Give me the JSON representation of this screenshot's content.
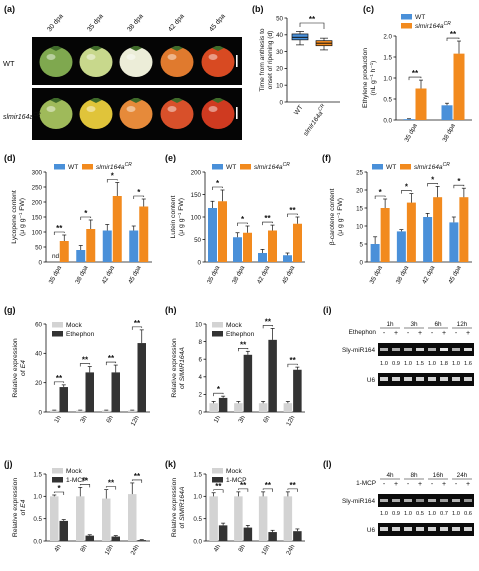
{
  "colors": {
    "wt": "#4a90d9",
    "mut": "#f28a1e",
    "mock": "#d3d3d3",
    "treat": "#333333",
    "gel_bg": "#0b0b0b",
    "gel_band": "#e8e8e8",
    "tomato_bg": "#050505"
  },
  "text": {
    "nd": "nd",
    "sig2": "**",
    "sig1": "*",
    "wt_row_label": "WT",
    "mut_row_label_main": "slmir164a",
    "mut_row_label_sup": "CR",
    "mock": "Mock",
    "ethephon": "Ethephon",
    "mcp": "1-MCP",
    "gel_mir": "Sly-miR164",
    "gel_u6": "U6"
  },
  "chart_data": [
    {
      "panel": "a",
      "type": "image",
      "stages": [
        "30 dpa",
        "35 dpa",
        "38 dpa",
        "42 dpa",
        "45 dpa"
      ],
      "rows": [
        {
          "label": "WT",
          "fruit_colors": [
            "#7fa84f",
            "#c8d88c",
            "#ecedd8",
            "#e07a2e",
            "#d84a22"
          ]
        },
        {
          "label": "slmir164aCR",
          "fruit_colors": [
            "#9fba5a",
            "#e0c43a",
            "#e68a3a",
            "#d8502a",
            "#cf3a20"
          ]
        }
      ]
    },
    {
      "panel": "b",
      "type": "box",
      "categories": [
        "WT",
        "slmir164a"
      ],
      "cat_sup": [
        "",
        "CR"
      ],
      "ylabel": [
        "Time from anthesis to",
        "onset of ripening (d)"
      ],
      "yticks": [
        0,
        10,
        20,
        30,
        40,
        50
      ],
      "ylim": [
        0,
        50
      ],
      "boxes": [
        {
          "min": 34,
          "q1": 37,
          "median": 38.5,
          "q3": 40.5,
          "max": 42
        },
        {
          "min": 31,
          "q1": 33.5,
          "median": 35,
          "q3": 36.5,
          "max": 38
        }
      ],
      "signif": "**"
    },
    {
      "panel": "c",
      "type": "bar",
      "categories": [
        "35 dpa",
        "38 dpa"
      ],
      "ylabel": "Ethylene production",
      "ylabel_unit": "(nL g⁻¹ h⁻¹)",
      "yticks": [
        0,
        0.5,
        1.0,
        1.5,
        2.0
      ],
      "ylim": [
        0,
        2.0
      ],
      "series": [
        {
          "name": "WT",
          "values": [
            0.02,
            0.35
          ],
          "err": [
            0.01,
            0.05
          ]
        },
        {
          "name": "slmir164a",
          "values": [
            0.75,
            1.58
          ],
          "err": [
            0.2,
            0.3
          ]
        }
      ],
      "signif": [
        "**",
        "**"
      ],
      "legend": {
        "entries": [
          "WT",
          "slmir164a"
        ],
        "sup": [
          "",
          "CR"
        ]
      }
    },
    {
      "panel": "d",
      "type": "bar",
      "categories": [
        "35 dpa",
        "38 dpa",
        "42 dpa",
        "45 dpa"
      ],
      "ylabel": "Lycopene content",
      "ylabel_unit": "(μ g g⁻¹ FW)",
      "yticks": [
        0,
        50,
        100,
        150,
        200,
        250,
        300
      ],
      "ylim": [
        0,
        300
      ],
      "series": [
        {
          "name": "WT",
          "values": [
            0,
            40,
            105,
            105
          ],
          "err": [
            0,
            15,
            20,
            15
          ]
        },
        {
          "name": "slmir164a",
          "values": [
            70,
            110,
            220,
            185
          ],
          "err": [
            20,
            30,
            45,
            25
          ]
        }
      ],
      "signif": [
        "**",
        "*",
        "*",
        "*"
      ],
      "legend": {
        "entries": [
          "WT",
          "slmir164a"
        ],
        "sup": [
          "",
          "CR"
        ]
      }
    },
    {
      "panel": "e",
      "type": "bar",
      "categories": [
        "35 dpa",
        "38 dpa",
        "42 dpa",
        "45 dpa"
      ],
      "ylabel": "Lutein content",
      "ylabel_unit": "(μ g g⁻¹ FW)",
      "yticks": [
        0,
        50,
        100,
        150,
        200
      ],
      "ylim": [
        0,
        200
      ],
      "series": [
        {
          "name": "WT",
          "values": [
            120,
            55,
            20,
            15
          ],
          "err": [
            15,
            10,
            8,
            5
          ]
        },
        {
          "name": "slmir164a",
          "values": [
            135,
            65,
            70,
            85
          ],
          "err": [
            25,
            15,
            12,
            15
          ]
        }
      ],
      "signif": [
        "*",
        "*",
        "**",
        "**"
      ],
      "legend": {
        "entries": [
          "WT",
          "slmir164a"
        ],
        "sup": [
          "",
          "CR"
        ]
      }
    },
    {
      "panel": "f",
      "type": "bar",
      "categories": [
        "35 dpa",
        "38 dpa",
        "42 dpa",
        "45 dpa"
      ],
      "ylabel": "β-carotene content",
      "ylabel_unit": "(μ g g⁻¹ FW)",
      "yticks": [
        0,
        5,
        10,
        15,
        20,
        25
      ],
      "ylim": [
        0,
        25
      ],
      "series": [
        {
          "name": "WT",
          "values": [
            5,
            8.5,
            12.5,
            11
          ],
          "err": [
            2,
            0.5,
            1,
            1.5
          ]
        },
        {
          "name": "slmir164a",
          "values": [
            15,
            16.5,
            18,
            18
          ],
          "err": [
            2.5,
            2.5,
            3,
            2.5
          ]
        }
      ],
      "signif": [
        "*",
        "*",
        "*",
        "*"
      ],
      "legend": {
        "entries": [
          "WT",
          "slmir164a"
        ],
        "sup": [
          "",
          "CR"
        ]
      }
    },
    {
      "panel": "g",
      "type": "bar",
      "categories": [
        "1h",
        "3h",
        "6h",
        "12h"
      ],
      "ylabel": "Relative expression",
      "ylabel_gene": "E4",
      "yticks": [
        0,
        20,
        40,
        60
      ],
      "ylim": [
        0,
        60
      ],
      "series": [
        {
          "name": "Mock",
          "values": [
            1,
            1,
            1,
            1
          ],
          "err": [
            0.3,
            0.3,
            0.3,
            0.3
          ]
        },
        {
          "name": "Ethephon",
          "values": [
            17,
            27,
            27,
            47
          ],
          "err": [
            1.5,
            4,
            5,
            9
          ]
        }
      ],
      "signif": [
        "**",
        "**",
        "**",
        "**"
      ],
      "legend": {
        "entries": [
          "Mock",
          "Ethephon"
        ]
      }
    },
    {
      "panel": "h",
      "type": "bar",
      "categories": [
        "1h",
        "3h",
        "6h",
        "12h"
      ],
      "ylabel": "Relative expression",
      "ylabel_gene": "SlMIR164A",
      "yticks": [
        0,
        2,
        4,
        6,
        8,
        10
      ],
      "ylim": [
        0,
        10
      ],
      "series": [
        {
          "name": "Mock",
          "values": [
            1,
            1,
            1,
            1
          ],
          "err": [
            0.2,
            0.2,
            0.2,
            0.2
          ]
        },
        {
          "name": "Ethephon",
          "values": [
            1.6,
            6.5,
            8.2,
            4.8
          ],
          "err": [
            0.2,
            0.4,
            1.3,
            0.3
          ]
        }
      ],
      "signif": [
        "*",
        "**",
        "**",
        "**"
      ],
      "legend": {
        "entries": [
          "Mock",
          "Ethephon"
        ]
      }
    },
    {
      "panel": "i",
      "type": "gel",
      "treatment_label": "Ethephon",
      "timepoints": [
        "1h",
        "3h",
        "6h",
        "12h"
      ],
      "lane_signs": [
        "-",
        "+",
        "-",
        "+",
        "-",
        "+",
        "-",
        "+"
      ],
      "band_labels": [
        "Sly-miR164",
        "U6"
      ],
      "quant": [
        "1.0",
        "0.9",
        "1.0",
        "1.5",
        "1.0",
        "1.8",
        "1.0",
        "1.6"
      ]
    },
    {
      "panel": "j",
      "type": "bar",
      "categories": [
        "4h",
        "8h",
        "16h",
        "24h"
      ],
      "ylabel": "Relative expression",
      "ylabel_gene": "E4",
      "yticks": [
        0,
        0.5,
        1.0,
        1.5
      ],
      "ylim": [
        0,
        1.5
      ],
      "series": [
        {
          "name": "Mock",
          "values": [
            1,
            1,
            0.95,
            1.05
          ],
          "err": [
            0.03,
            0.2,
            0.2,
            0.25
          ]
        },
        {
          "name": "1-MCP",
          "values": [
            0.45,
            0.12,
            0.1,
            0.02
          ],
          "err": [
            0.03,
            0.02,
            0.02,
            0.01
          ]
        }
      ],
      "signif": [
        "*",
        "**",
        "**",
        "**"
      ],
      "legend": {
        "entries": [
          "Mock",
          "1-MCP"
        ]
      }
    },
    {
      "panel": "k",
      "type": "bar",
      "categories": [
        "4h",
        "8h",
        "16h",
        "24h"
      ],
      "ylabel": "Relative expression",
      "ylabel_gene": "SlMIR164A",
      "yticks": [
        0,
        0.5,
        1.0,
        1.5
      ],
      "ylim": [
        0,
        1.5
      ],
      "series": [
        {
          "name": "Mock",
          "values": [
            1,
            1,
            1,
            1
          ],
          "err": [
            0.08,
            0.1,
            0.1,
            0.1
          ]
        },
        {
          "name": "1-MCP",
          "values": [
            0.35,
            0.3,
            0.2,
            0.22
          ],
          "err": [
            0.05,
            0.05,
            0.04,
            0.05
          ]
        }
      ],
      "signif": [
        "**",
        "**",
        "**",
        "**"
      ],
      "legend": {
        "entries": [
          "Mock",
          "1-MCP"
        ]
      }
    },
    {
      "panel": "l",
      "type": "gel",
      "treatment_label": "1-MCP",
      "timepoints": [
        "4h",
        "8h",
        "16h",
        "24h"
      ],
      "lane_signs": [
        "-",
        "+",
        "-",
        "+",
        "-",
        "+",
        "-",
        "+"
      ],
      "band_labels": [
        "Sly-miR164",
        "U6"
      ],
      "quant": [
        "1.0",
        "0.9",
        "1.0",
        "0.5",
        "1.0",
        "0.7",
        "1.0",
        "0.6"
      ]
    }
  ]
}
